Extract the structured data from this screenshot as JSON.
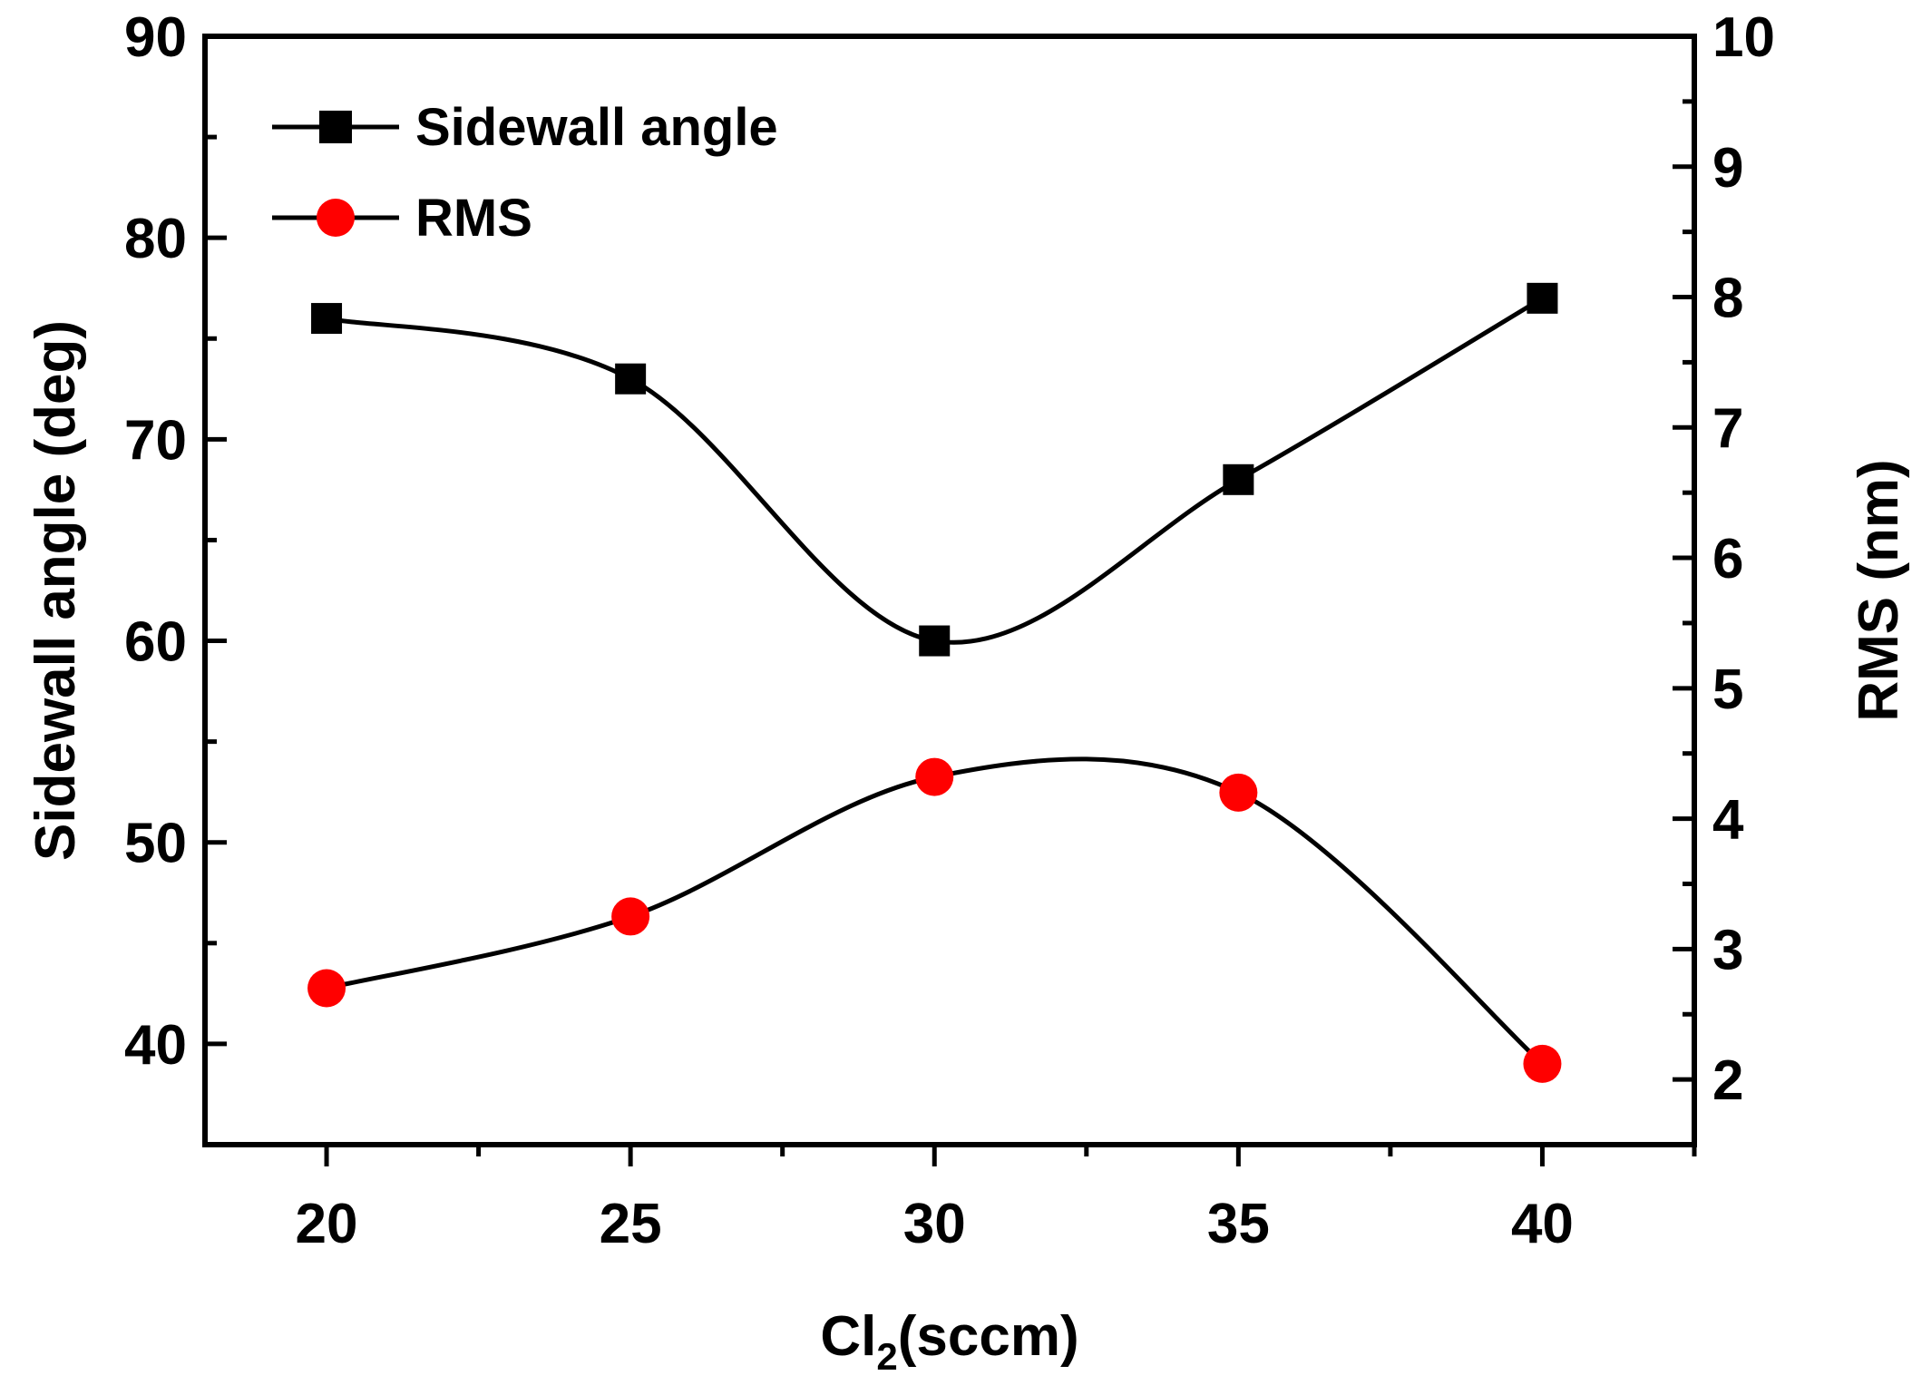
{
  "chart_data": {
    "type": "line",
    "title": "",
    "xlabel": "Cl2(sccm)",
    "xlabel_parts": {
      "main": "Cl",
      "sub": "2",
      "rest": "(sccm)"
    },
    "ylabel": "Sidewall angle (deg)",
    "y2label": "RMS (nm)",
    "x": [
      20,
      25,
      30,
      35,
      40
    ],
    "xlim": [
      18,
      42.5
    ],
    "ylim": [
      35,
      90
    ],
    "y2lim": [
      1.5,
      10
    ],
    "xticks": [
      20,
      25,
      30,
      35,
      40
    ],
    "xtick_labels": [
      "20",
      "25",
      "30",
      "35",
      "40"
    ],
    "yticks": [
      40,
      50,
      60,
      70,
      80,
      90
    ],
    "ytick_labels": [
      "40",
      "50",
      "60",
      "70",
      "80",
      "90"
    ],
    "y2ticks": [
      2,
      3,
      4,
      5,
      6,
      7,
      8,
      9,
      10
    ],
    "y2tick_labels": [
      "2",
      "3",
      "4",
      "5",
      "6",
      "7",
      "8",
      "9",
      "10"
    ],
    "grid": false,
    "legend_position": "top-left",
    "series": [
      {
        "name": "Sidewall angle",
        "axis": "left",
        "marker": "square",
        "color": "#000000",
        "values": [
          76,
          73,
          60,
          68,
          77
        ]
      },
      {
        "name": "RMS",
        "axis": "right",
        "marker": "circle",
        "color": "#ff0000",
        "values": [
          2.7,
          3.25,
          4.32,
          4.2,
          2.12
        ]
      }
    ]
  }
}
